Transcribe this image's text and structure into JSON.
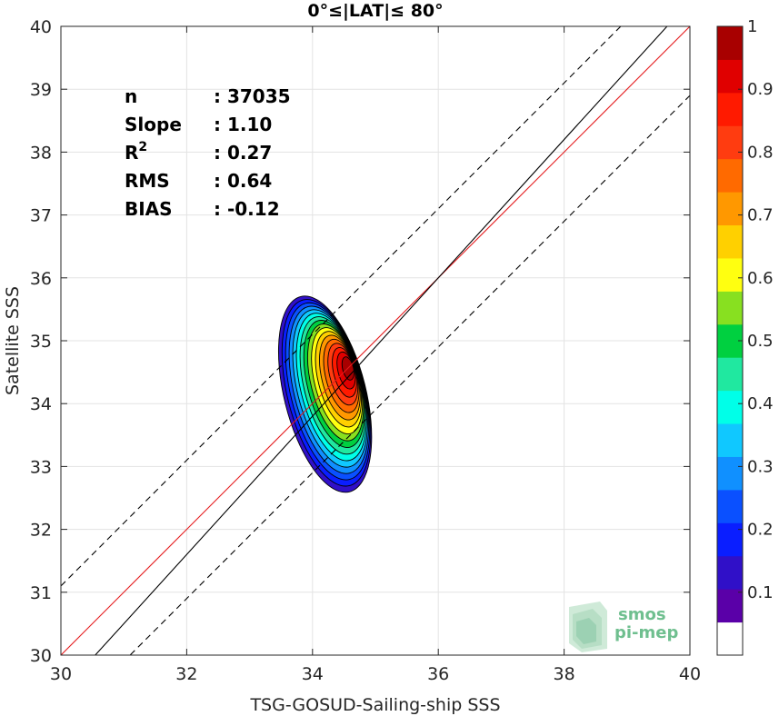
{
  "chart_data": {
    "type": "heatmap",
    "title": "0°≤|LAT|≤ 80°",
    "xlabel": "TSG-GOSUD-Sailing-ship SSS",
    "ylabel": "Satellite SSS",
    "xlim": [
      30,
      40
    ],
    "ylim": [
      30,
      40
    ],
    "xticks": [
      "30",
      "32",
      "34",
      "36",
      "38",
      "40"
    ],
    "yticks": [
      "30",
      "31",
      "32",
      "33",
      "34",
      "35",
      "36",
      "37",
      "38",
      "39",
      "40"
    ],
    "grid": true,
    "density_peak": {
      "x": 34.6,
      "y": 34.6,
      "value": 1.0
    },
    "density_extent": {
      "x": [
        33.6,
        35.2
      ],
      "y": [
        32.6,
        35.7
      ]
    },
    "lines": [
      {
        "name": "identity",
        "slope": 1.0,
        "intercept": 0.0,
        "color": "#e41a1c",
        "style": "solid"
      },
      {
        "name": "fit",
        "slope": 1.1,
        "intercept": -3.6,
        "color": "#000000",
        "style": "solid"
      },
      {
        "name": "upper-bound",
        "slope": 1.0,
        "intercept": 1.1,
        "color": "#000000",
        "style": "dashed"
      },
      {
        "name": "lower-bound",
        "slope": 1.0,
        "intercept": -1.1,
        "color": "#000000",
        "style": "dashed"
      }
    ],
    "stats": [
      {
        "label": "n",
        "value": ": 37035"
      },
      {
        "label": "Slope",
        "value": ": 1.10"
      },
      {
        "label": "R",
        "sup": "2",
        "value": ": 0.27"
      },
      {
        "label": "RMS",
        "value": ": 0.64"
      },
      {
        "label": "BIAS",
        "value": ": -0.12"
      }
    ],
    "colorbar": {
      "min": 0,
      "max": 1,
      "ticks": [
        "0.1",
        "0.2",
        "0.3",
        "0.4",
        "0.5",
        "0.6",
        "0.7",
        "0.8",
        "0.9",
        "1"
      ],
      "colors": [
        "#ffffff",
        "#5a00a8",
        "#3010c8",
        "#0a1eff",
        "#0a50ff",
        "#1090ff",
        "#10c8ff",
        "#00ffe8",
        "#20e8a0",
        "#00d040",
        "#88e020",
        "#ffff10",
        "#ffd000",
        "#ff9800",
        "#ff6a00",
        "#ff3c10",
        "#ff1a00",
        "#e00000",
        "#a80000"
      ]
    }
  },
  "logo": {
    "line1": "smos",
    "line2": "pi-mep"
  }
}
